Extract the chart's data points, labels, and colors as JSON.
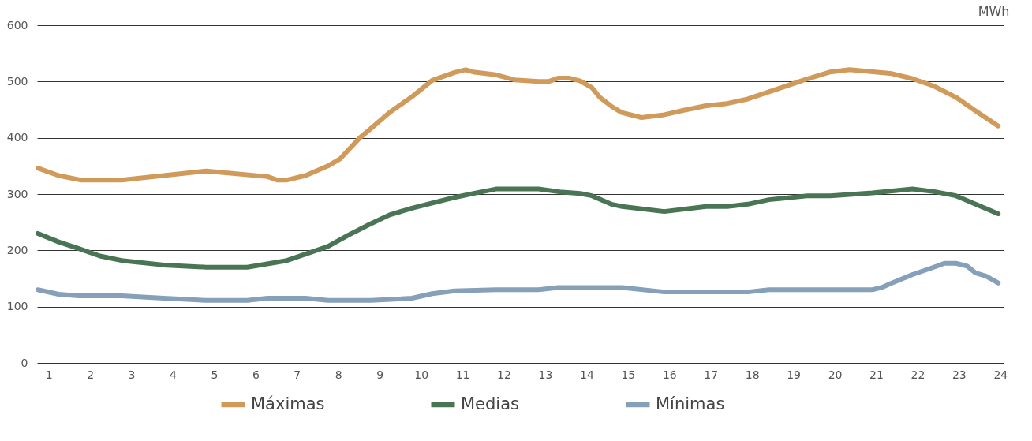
{
  "chart_data": {
    "type": "line",
    "ylabel": "MWh",
    "xlim": [
      0.72,
      24.08
    ],
    "xticks": [
      1,
      2,
      3,
      4,
      5,
      6,
      7,
      8,
      9,
      10,
      11,
      12,
      13,
      14,
      15,
      16,
      17,
      18,
      19,
      20,
      21,
      22,
      23,
      24
    ],
    "ylim": [
      0,
      600
    ],
    "yticks": [
      0,
      100,
      200,
      300,
      400,
      500,
      600
    ],
    "grid": "y",
    "legend": "bottom",
    "marker": "none",
    "line_style": "solid",
    "series": [
      {
        "name": "Máximas",
        "color": "#d09a5b",
        "x": [
          0.74,
          1.24,
          1.77,
          2.76,
          4.81,
          6.29,
          6.52,
          6.76,
          7.21,
          7.75,
          8.05,
          8.52,
          8.75,
          9.24,
          9.78,
          10.27,
          10.81,
          11.08,
          11.26,
          11.81,
          12.26,
          12.84,
          13.08,
          13.31,
          13.59,
          13.85,
          14.13,
          14.32,
          14.6,
          14.85,
          15.33,
          15.88,
          16.35,
          16.89,
          17.4,
          17.9,
          19.35,
          19.89,
          20.36,
          21.38,
          21.88,
          22.39,
          22.93,
          23.4,
          23.95
        ],
        "values": [
          346,
          333,
          325,
          325,
          341,
          331,
          325,
          325,
          333,
          350,
          363,
          400,
          414,
          445,
          473,
          502,
          516,
          521,
          517,
          512,
          503,
          500,
          500,
          506,
          506,
          501,
          489,
          472,
          456,
          445,
          436,
          441,
          449,
          457,
          461,
          469,
          505,
          517,
          521,
          514,
          505,
          492,
          472,
          448,
          421
        ]
      },
      {
        "name": "Medias",
        "color": "#4a7555",
        "x": [
          0.74,
          1.24,
          1.73,
          2.24,
          2.76,
          3.78,
          4.81,
          5.8,
          6.76,
          7.75,
          8.24,
          8.75,
          9.24,
          9.78,
          10.81,
          11.32,
          11.81,
          12.84,
          13.35,
          13.85,
          14.13,
          14.6,
          14.86,
          15.88,
          16.89,
          17.4,
          17.9,
          18.41,
          19.35,
          19.89,
          20.91,
          21.88,
          22.43,
          22.93,
          23.4,
          23.95
        ],
        "values": [
          230,
          215,
          203,
          190,
          182,
          174,
          170,
          170,
          182,
          207,
          227,
          246,
          263,
          275,
          294,
          302,
          309,
          309,
          304,
          301,
          297,
          282,
          278,
          269,
          278,
          278,
          282,
          290,
          297,
          297,
          302,
          309,
          304,
          297,
          282,
          265
        ]
      },
      {
        "name": "Mínimas",
        "color": "#85a0b8",
        "x": [
          0.74,
          1.24,
          1.73,
          2.76,
          3.78,
          4.81,
          5.8,
          6.29,
          7.21,
          7.75,
          8.79,
          9.78,
          10.27,
          10.81,
          11.81,
          12.84,
          13.31,
          14.86,
          15.88,
          17.9,
          18.41,
          20.91,
          21.13,
          21.38,
          21.88,
          22.39,
          22.65,
          22.93,
          23.2,
          23.4,
          23.66,
          23.95
        ],
        "values": [
          130,
          122,
          119,
          119,
          115,
          111,
          111,
          115,
          115,
          111,
          111,
          115,
          123,
          128,
          130,
          130,
          134,
          134,
          126,
          126,
          130,
          130,
          134,
          142,
          157,
          170,
          177,
          177,
          172,
          160,
          154,
          142
        ]
      }
    ]
  }
}
